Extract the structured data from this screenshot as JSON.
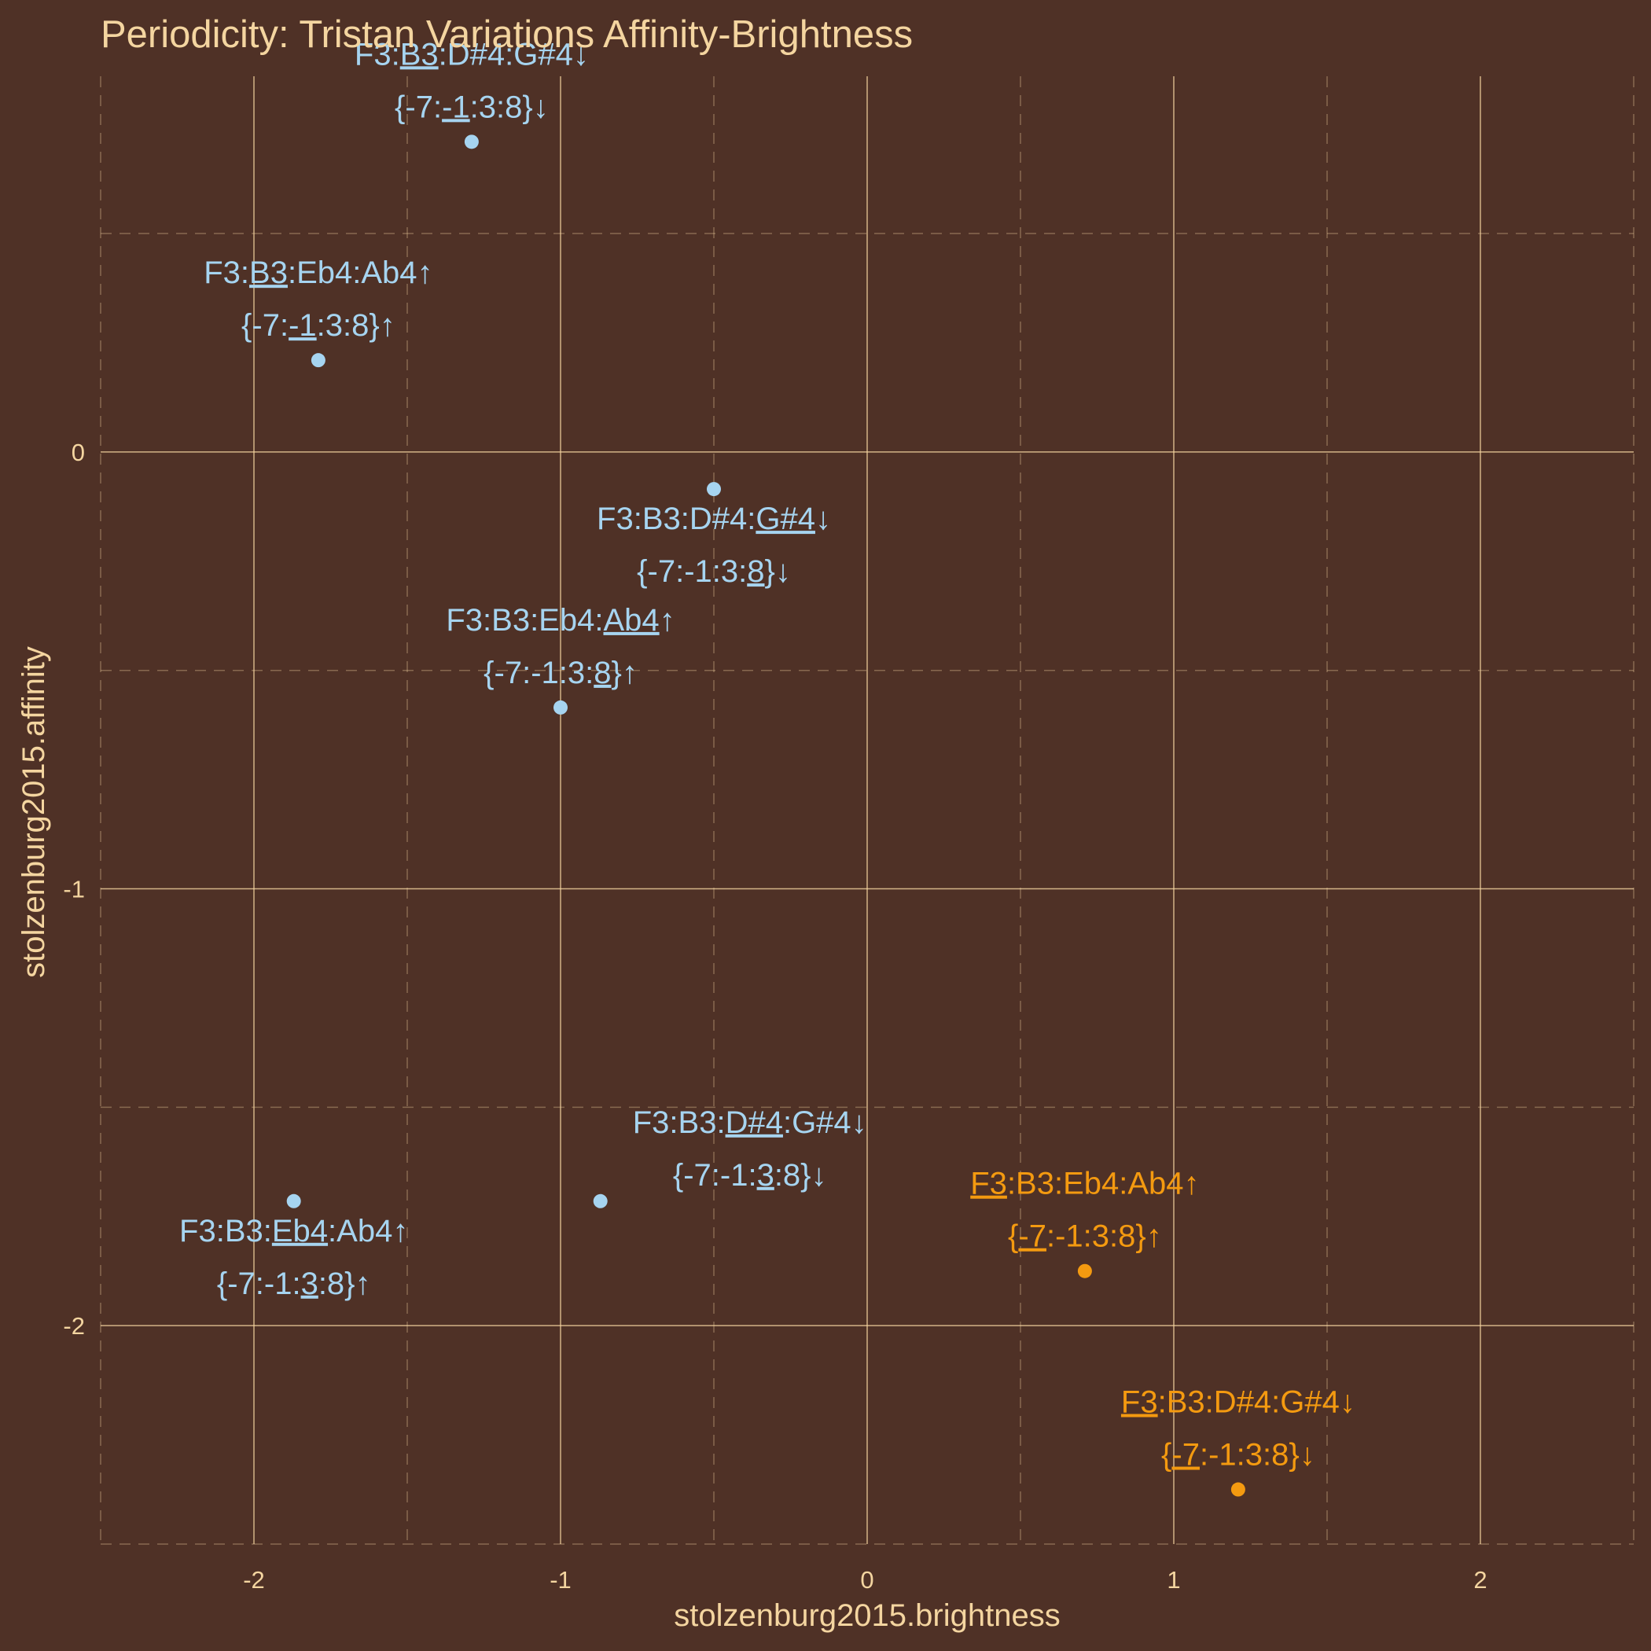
{
  "chart_data": {
    "type": "scatter",
    "title": "Periodicity: Tristan Variations Affinity-Brightness",
    "xlabel": "stolzenburg2015.brightness",
    "ylabel": "stolzenburg2015.affinity",
    "xlim": [
      -2.5,
      2.5
    ],
    "ylim": [
      -2.5,
      0.86
    ],
    "x_ticks": [
      -2,
      -1,
      0,
      1,
      2
    ],
    "y_ticks": [
      -2,
      -1,
      0
    ],
    "grid": true,
    "colors": {
      "background": "#4f3126",
      "text": "#f4d5a0",
      "grid": "#f4d5a0",
      "blue": "#a6d4f0",
      "orange": "#f49a10"
    },
    "points": [
      {
        "x": -1.29,
        "y": 0.71,
        "color": "blue",
        "label_pos": "above",
        "label": [
          [
            "F3:",
            ""
          ],
          [
            "B3",
            "u"
          ],
          [
            ":D#4:G#4↓",
            ""
          ]
        ],
        "label2": [
          [
            "{-7:",
            ""
          ],
          [
            "-1",
            "u"
          ],
          [
            ":3:8}↓",
            ""
          ]
        ]
      },
      {
        "x": -1.79,
        "y": 0.21,
        "color": "blue",
        "label_pos": "above",
        "label": [
          [
            "F3:",
            ""
          ],
          [
            "B3",
            "u"
          ],
          [
            ":Eb4:Ab4↑",
            ""
          ]
        ],
        "label2": [
          [
            "{-7:",
            ""
          ],
          [
            "-1",
            "u"
          ],
          [
            ":3:8}↑",
            ""
          ]
        ]
      },
      {
        "x": -0.5,
        "y": -0.085,
        "color": "blue",
        "label_pos": "below",
        "label": [
          [
            "F3:B3:D#4:",
            ""
          ],
          [
            "G#4",
            "u"
          ],
          [
            "↓",
            ""
          ]
        ],
        "label2": [
          [
            "{-7:-1:3:",
            ""
          ],
          [
            "8",
            "u"
          ],
          [
            "}↓",
            ""
          ]
        ]
      },
      {
        "x": -1.0,
        "y": -0.585,
        "color": "blue",
        "label_pos": "above",
        "label": [
          [
            "F3:B3:Eb4:",
            ""
          ],
          [
            "Ab4",
            "u"
          ],
          [
            "↑",
            ""
          ]
        ],
        "label2": [
          [
            "{-7:-1:3:",
            ""
          ],
          [
            "8",
            "u"
          ],
          [
            "}↑",
            ""
          ]
        ]
      },
      {
        "x": -0.87,
        "y": -1.715,
        "color": "blue",
        "label_pos": "upright",
        "label": [
          [
            "F3:B3:",
            ""
          ],
          [
            "D#4",
            "u"
          ],
          [
            ":G#4↓",
            ""
          ]
        ],
        "label2": [
          [
            "{-7:-1:",
            ""
          ],
          [
            "3",
            "u"
          ],
          [
            ":8}↓",
            ""
          ]
        ]
      },
      {
        "x": -1.87,
        "y": -1.715,
        "color": "blue",
        "label_pos": "below",
        "label": [
          [
            "F3:B3:",
            ""
          ],
          [
            "Eb4",
            "u"
          ],
          [
            ":Ab4↑",
            ""
          ]
        ],
        "label2": [
          [
            "{-7:-1:",
            ""
          ],
          [
            "3",
            "u"
          ],
          [
            ":8}↑",
            ""
          ]
        ]
      },
      {
        "x": 0.71,
        "y": -1.875,
        "color": "orange",
        "label_pos": "above",
        "label": [
          [
            "F3",
            "u"
          ],
          [
            ":B3:Eb4:Ab4↑",
            ""
          ]
        ],
        "label2": [
          [
            "{",
            ""
          ],
          [
            "-7",
            "u"
          ],
          [
            ":-1:3:8}↑",
            ""
          ]
        ]
      },
      {
        "x": 1.21,
        "y": -2.375,
        "color": "orange",
        "label_pos": "above",
        "label": [
          [
            "F3",
            "u"
          ],
          [
            ":B3:D#4:G#4↓",
            ""
          ]
        ],
        "label2": [
          [
            "{",
            ""
          ],
          [
            "-7",
            "u"
          ],
          [
            ":-1:3:8}↓",
            ""
          ]
        ]
      }
    ]
  }
}
